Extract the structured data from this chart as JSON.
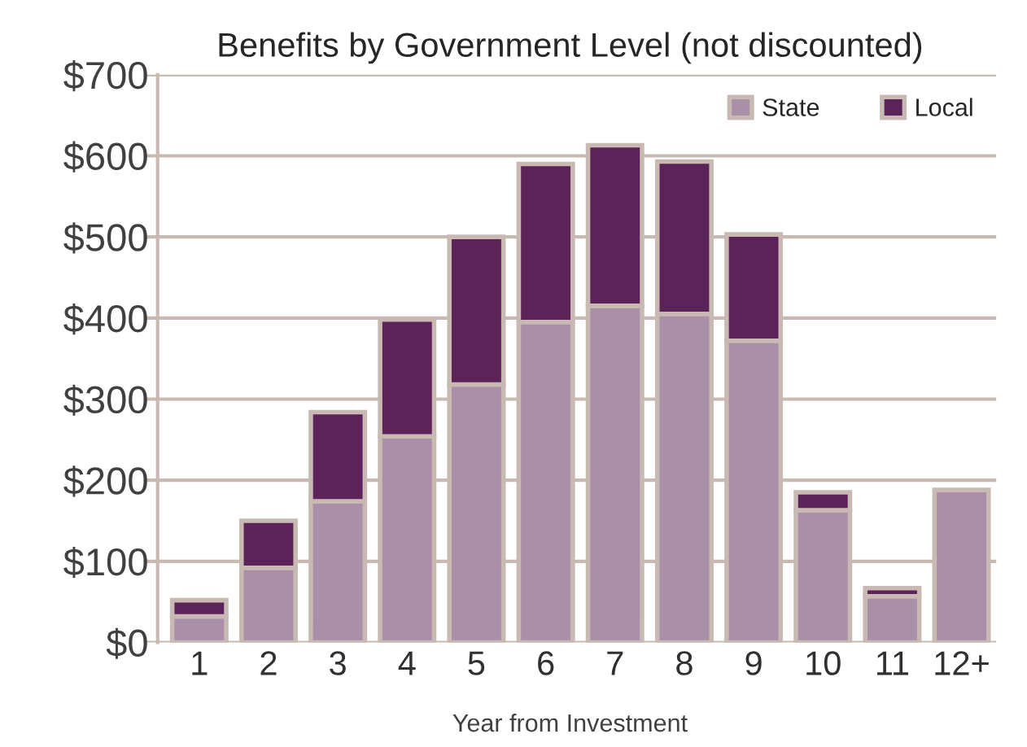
{
  "chart_data": {
    "type": "bar",
    "title": "Benefits by Government Level (not discounted)",
    "xlabel": "Year from Investment",
    "categories": [
      "1",
      "2",
      "3",
      "4",
      "5",
      "6",
      "7",
      "8",
      "9",
      "10",
      "11",
      "12+"
    ],
    "stacked": true,
    "series": [
      {
        "name": "State",
        "color": "#aa8fa8",
        "values": [
          32,
          92,
          174,
          254,
          318,
          395,
          415,
          405,
          372,
          163,
          57,
          188
        ]
      },
      {
        "name": "Local",
        "color": "#5c2358",
        "values": [
          20,
          58,
          110,
          144,
          182,
          195,
          198,
          188,
          131,
          22,
          10,
          null
        ]
      }
    ],
    "ylim": [
      0,
      700
    ],
    "yticks": [
      {
        "value": 0,
        "label": "$0"
      },
      {
        "value": 100,
        "label": "$100"
      },
      {
        "value": 200,
        "label": "$200"
      },
      {
        "value": 300,
        "label": "$300"
      },
      {
        "value": 400,
        "label": "$400"
      },
      {
        "value": 500,
        "label": "$500"
      },
      {
        "value": 600,
        "label": "$600"
      },
      {
        "value": 700,
        "label": "$700"
      }
    ],
    "grid": "y",
    "legend": "top right"
  }
}
